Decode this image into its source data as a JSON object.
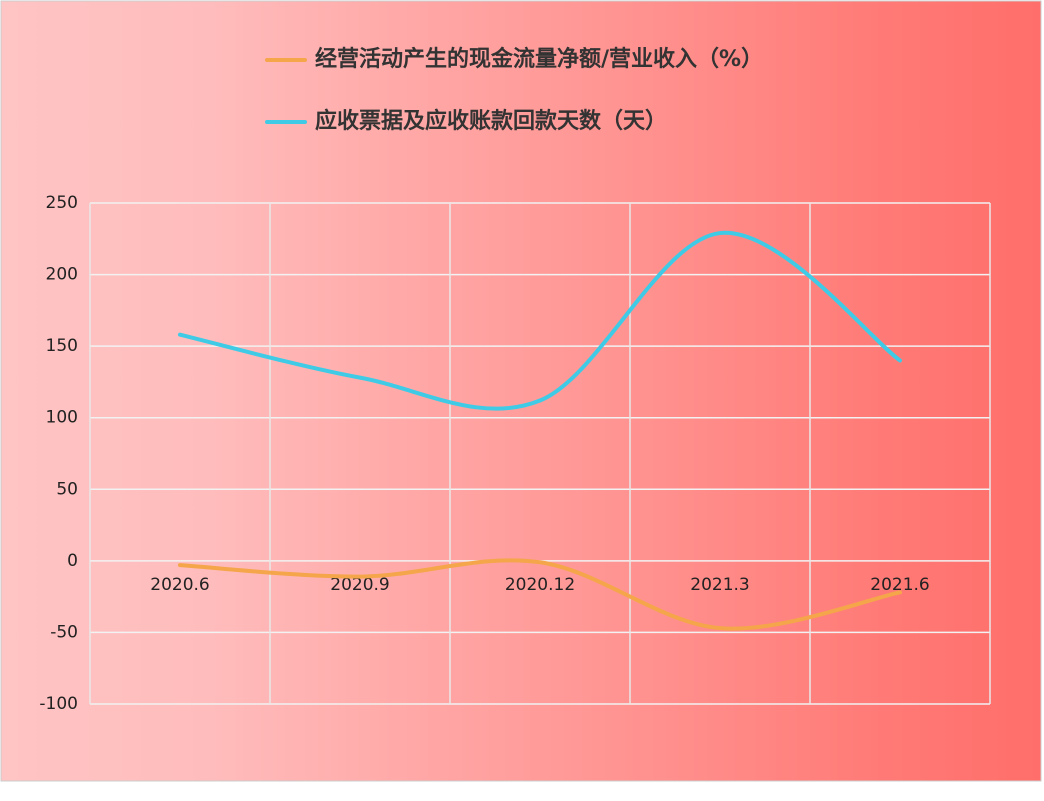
{
  "chart_data": {
    "type": "line",
    "categories": [
      "2020.6",
      "2020.9",
      "2020.12",
      "2021.3",
      "2021.6"
    ],
    "series": [
      {
        "name": "经营活动产生的现金流量净额/营业收入（%）",
        "color": "#f5a54a",
        "values": [
          -3,
          -11,
          -1,
          -47,
          -22
        ]
      },
      {
        "name": "应收票据及应收账款回款天数（天）",
        "color": "#3fcbe6",
        "values": [
          158,
          128,
          112,
          229,
          140
        ]
      }
    ],
    "ylim": [
      -100,
      250
    ],
    "yticks": [
      -100,
      -50,
      0,
      50,
      100,
      150,
      200,
      250
    ],
    "grid": true
  }
}
